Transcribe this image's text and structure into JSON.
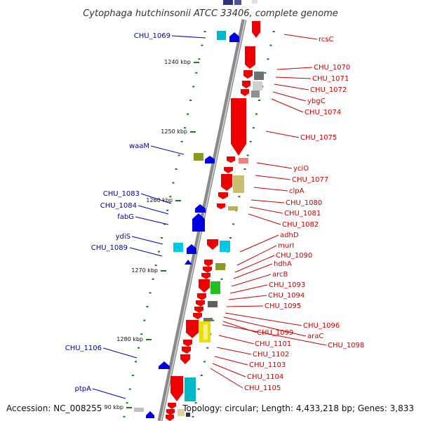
{
  "title": "Cytophaga hutchinsonii ATCC 33406, complete genome",
  "footer": {
    "accession": "Accession: NC_008255",
    "topology": "Topology: circular; Length: 4,433,218 bp; Genes: 3,833"
  },
  "colors": {
    "backbone": "#8a8a8a",
    "forward_label": "#0000b0",
    "reverse_label": "#cc0000",
    "tick": "#1a7a1a"
  },
  "scale_ticks": [
    "1240 kbp",
    "1250 kbp",
    "1260 kbp",
    "1270 kbp",
    "1280 kbp",
    "90 kbp"
  ],
  "labels_left": [
    "CHU_1069",
    "waaM",
    "CHU_1083",
    "CHU_1084",
    "fabG",
    "ydiS",
    "CHU_1089",
    "CHU_1106",
    "ptpA"
  ],
  "labels_right": [
    "rcsC",
    "CHU_1070",
    "CHU_1071",
    "CHU_1072",
    "ybgC",
    "CHU_1074",
    "CHU_1075",
    "yciO",
    "CHU_1077",
    "clpA",
    "CHU_1080",
    "CHU_1081",
    "CHU_1082",
    "adhD",
    "murI",
    "CHU_1090",
    "hdhA",
    "arcB",
    "CHU_1093",
    "CHU_1094",
    "CHU_1095",
    "CHU_1096",
    "araC",
    "CHU_1099",
    "CHU_1098",
    "CHU_1101",
    "CHU_1102",
    "CHU_1103",
    "CHU_1104",
    "CHU_1105"
  ]
}
